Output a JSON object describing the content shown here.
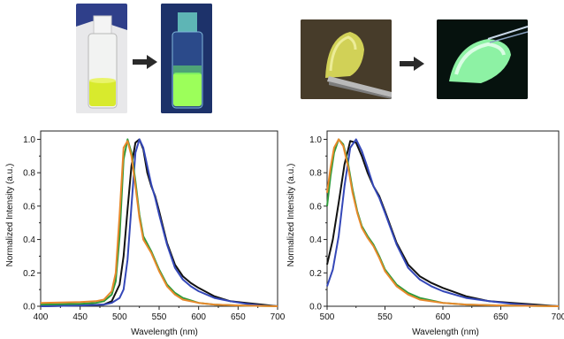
{
  "colors": {
    "black_series": "#111111",
    "blue_series": "#3447b8",
    "green_series": "#2e9b3a",
    "orange_series": "#e8892c",
    "axis": "#222222",
    "fluorescence_green": "#9cff5a",
    "solution_yellow": "#d7e64a"
  },
  "photos": [
    {
      "content": "vial-yellow-solution-ambient"
    },
    {
      "content": "vial-green-fluorescence-uv"
    },
    {
      "content": "yellow-dome-on-tweezers-ambient"
    },
    {
      "content": "green-dome-fluorescence-uv"
    }
  ],
  "chart_data": [
    {
      "type": "line",
      "xlabel": "Wavelength (nm)",
      "ylabel": "Normalized Intensity (a.u.)",
      "xlim": [
        400,
        700
      ],
      "ylim": [
        0,
        1.05
      ],
      "xticks": [
        400,
        450,
        500,
        550,
        600,
        650,
        700
      ],
      "yticks": [
        0.0,
        0.2,
        0.4,
        0.6,
        0.8,
        1.0
      ],
      "ytick_labels": [
        "0.0",
        "0.2",
        "0.4",
        "0.6",
        "0.8",
        "1.0"
      ],
      "series": [
        {
          "color": "black_series",
          "x": [
            400,
            450,
            480,
            490,
            500,
            505,
            510,
            515,
            520,
            525,
            530,
            535,
            540,
            545,
            550,
            560,
            570,
            580,
            590,
            600,
            620,
            640,
            660,
            680,
            700
          ],
          "y": [
            0.0,
            0.005,
            0.01,
            0.03,
            0.13,
            0.3,
            0.58,
            0.84,
            0.98,
            1.0,
            0.94,
            0.8,
            0.72,
            0.66,
            0.57,
            0.38,
            0.25,
            0.18,
            0.14,
            0.11,
            0.06,
            0.03,
            0.02,
            0.01,
            0.0
          ]
        },
        {
          "color": "blue_series",
          "x": [
            400,
            450,
            480,
            490,
            500,
            505,
            510,
            515,
            520,
            525,
            530,
            535,
            540,
            545,
            550,
            560,
            570,
            580,
            590,
            600,
            620,
            640,
            660,
            680,
            700
          ],
          "y": [
            0.0,
            0.005,
            0.01,
            0.02,
            0.05,
            0.1,
            0.28,
            0.6,
            0.92,
            1.0,
            0.95,
            0.84,
            0.73,
            0.65,
            0.55,
            0.37,
            0.23,
            0.16,
            0.12,
            0.09,
            0.05,
            0.03,
            0.015,
            0.005,
            0.0
          ]
        },
        {
          "color": "green_series",
          "x": [
            400,
            450,
            470,
            480,
            490,
            495,
            500,
            505,
            510,
            515,
            520,
            525,
            530,
            540,
            550,
            560,
            570,
            580,
            600,
            620,
            650,
            700
          ],
          "y": [
            0.01,
            0.015,
            0.02,
            0.03,
            0.07,
            0.15,
            0.42,
            0.88,
            1.0,
            0.92,
            0.75,
            0.55,
            0.42,
            0.33,
            0.22,
            0.13,
            0.08,
            0.05,
            0.02,
            0.01,
            0.005,
            0.0
          ]
        },
        {
          "color": "orange_series",
          "x": [
            400,
            450,
            470,
            480,
            490,
            495,
            500,
            505,
            510,
            515,
            520,
            525,
            530,
            540,
            550,
            560,
            570,
            580,
            600,
            620,
            650,
            700
          ],
          "y": [
            0.02,
            0.025,
            0.03,
            0.04,
            0.09,
            0.2,
            0.55,
            0.95,
            0.99,
            0.9,
            0.72,
            0.53,
            0.4,
            0.32,
            0.21,
            0.12,
            0.07,
            0.04,
            0.02,
            0.01,
            0.005,
            0.0
          ]
        }
      ]
    },
    {
      "type": "line",
      "xlabel": "Wavelength (nm)",
      "ylabel": "Normalized Intensity (a.u.)",
      "xlim": [
        500,
        700
      ],
      "ylim": [
        0,
        1.05
      ],
      "xticks": [
        500,
        550,
        600,
        650,
        700
      ],
      "yticks": [
        0.0,
        0.2,
        0.4,
        0.6,
        0.8,
        1.0
      ],
      "ytick_labels": [
        "0.0",
        "0.2",
        "0.4",
        "0.6",
        "0.8",
        "1.0"
      ],
      "series": [
        {
          "color": "black_series",
          "x": [
            500,
            505,
            510,
            515,
            520,
            525,
            530,
            535,
            540,
            545,
            550,
            560,
            570,
            580,
            590,
            600,
            620,
            640,
            660,
            680,
            700
          ],
          "y": [
            0.25,
            0.4,
            0.62,
            0.85,
            0.99,
            0.98,
            0.9,
            0.8,
            0.72,
            0.66,
            0.57,
            0.38,
            0.25,
            0.18,
            0.14,
            0.11,
            0.06,
            0.03,
            0.02,
            0.01,
            0.0
          ]
        },
        {
          "color": "blue_series",
          "x": [
            500,
            505,
            510,
            515,
            520,
            525,
            530,
            535,
            540,
            545,
            550,
            560,
            570,
            580,
            590,
            600,
            620,
            640,
            660,
            680,
            700
          ],
          "y": [
            0.12,
            0.22,
            0.42,
            0.72,
            0.95,
            1.0,
            0.93,
            0.83,
            0.72,
            0.65,
            0.56,
            0.37,
            0.23,
            0.16,
            0.12,
            0.09,
            0.05,
            0.03,
            0.015,
            0.005,
            0.0
          ]
        },
        {
          "color": "green_series",
          "x": [
            500,
            503,
            506,
            510,
            514,
            518,
            522,
            526,
            530,
            535,
            540,
            545,
            550,
            560,
            570,
            580,
            600,
            620,
            650,
            700
          ],
          "y": [
            0.6,
            0.78,
            0.92,
            1.0,
            0.97,
            0.86,
            0.7,
            0.57,
            0.48,
            0.42,
            0.37,
            0.3,
            0.22,
            0.13,
            0.08,
            0.05,
            0.02,
            0.01,
            0.005,
            0.0
          ]
        },
        {
          "color": "orange_series",
          "x": [
            500,
            503,
            506,
            510,
            514,
            518,
            522,
            526,
            530,
            535,
            540,
            545,
            550,
            560,
            570,
            580,
            600,
            620,
            650,
            700
          ],
          "y": [
            0.68,
            0.83,
            0.95,
            1.0,
            0.96,
            0.84,
            0.68,
            0.56,
            0.47,
            0.41,
            0.36,
            0.29,
            0.21,
            0.12,
            0.07,
            0.04,
            0.02,
            0.01,
            0.005,
            0.0
          ]
        }
      ]
    }
  ]
}
